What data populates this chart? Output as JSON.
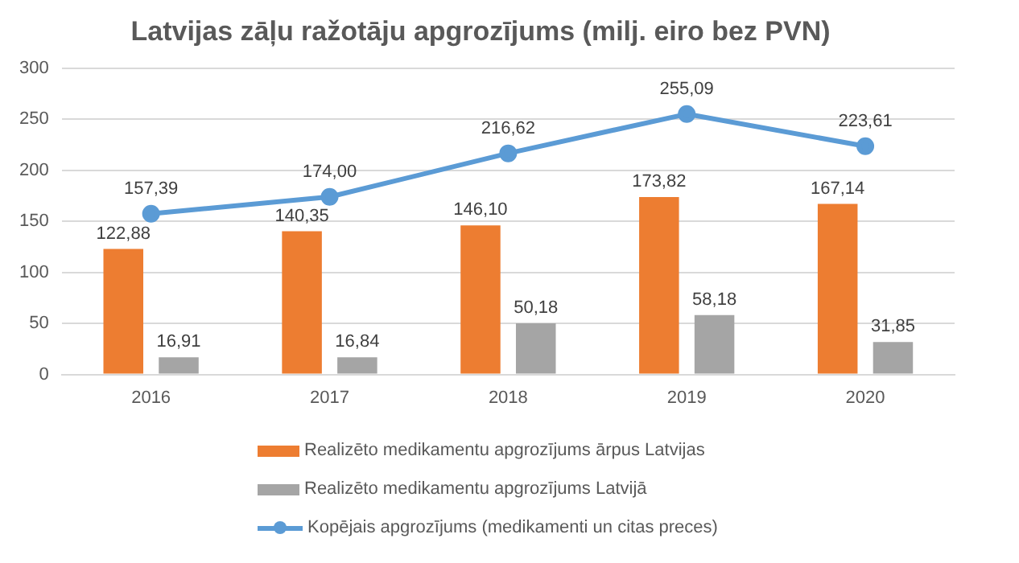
{
  "chart_data": {
    "type": "bar",
    "title": "Latvijas zāļu ražotāju apgrozījums (milj. eiro bez PVN)",
    "categories": [
      "2016",
      "2017",
      "2018",
      "2019",
      "2020"
    ],
    "series": [
      {
        "name": "Realizēto medikamentu apgrozījums ārpus Latvijas",
        "color": "#ed7d31",
        "values": [
          122.88,
          140.35,
          146.1,
          173.82,
          167.14
        ],
        "value_labels": [
          "122,88",
          "140,35",
          "146,10",
          "173,82",
          "167,14"
        ]
      },
      {
        "name": "Realizēto medikamentu apgrozījums Latvijā",
        "color": "#a5a5a5",
        "values": [
          16.91,
          16.84,
          50.18,
          58.18,
          31.85
        ],
        "value_labels": [
          "16,91",
          "16,84",
          "50,18",
          "58,18",
          "31,85"
        ]
      },
      {
        "name": "Kopējais apgrozījums (medikamenti un citas preces)",
        "type": "line",
        "color": "#5b9bd5",
        "values": [
          157.39,
          174.0,
          216.62,
          255.09,
          223.61
        ],
        "value_labels": [
          "157,39",
          "174,00",
          "216,62",
          "255,09",
          "223,61"
        ]
      }
    ],
    "ylim": [
      0,
      300
    ],
    "yticks": [
      0,
      50,
      100,
      150,
      200,
      250,
      300
    ],
    "grid": "y",
    "legend": "bottom",
    "marker": "circle",
    "line_style": "solid"
  }
}
